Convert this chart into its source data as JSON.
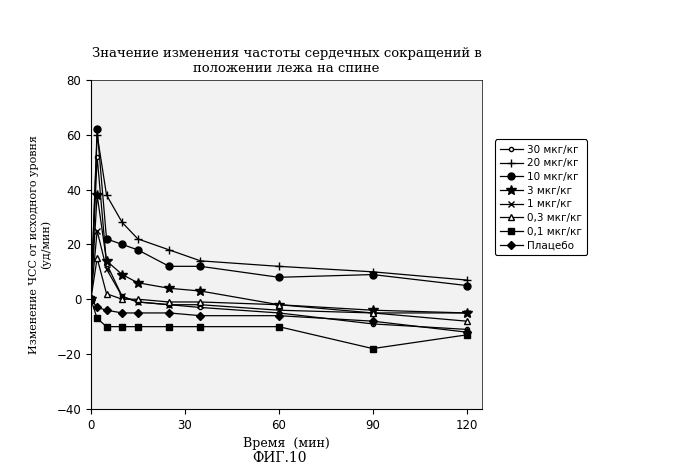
{
  "title": "Значение изменения частоты сердечных сокращений в\nположении лежа на спине",
  "xlabel": "Время  (мин)",
  "ylabel": "Изменение ЧСС от исходного уровня\n(уд/мин)",
  "xlim": [
    0,
    125
  ],
  "ylim": [
    -40,
    80
  ],
  "yticks": [
    -40,
    -20,
    0,
    20,
    40,
    60,
    80
  ],
  "xticks": [
    0,
    30,
    60,
    90,
    120
  ],
  "caption": "ФИГ.10",
  "bg_color": "#f0f0f0",
  "series": [
    {
      "label": "30 мкг/кг",
      "marker": "o",
      "markersize": 3,
      "filled": false,
      "x": [
        0,
        2,
        5,
        10,
        15,
        25,
        35,
        60,
        90,
        120
      ],
      "y": [
        0,
        52,
        13,
        1,
        -1,
        -2,
        -3,
        -5,
        -9,
        -11
      ]
    },
    {
      "label": "20 мкг/кг",
      "marker": "+",
      "markersize": 6,
      "filled": false,
      "x": [
        0,
        2,
        5,
        10,
        15,
        25,
        35,
        60,
        90,
        120
      ],
      "y": [
        0,
        60,
        38,
        28,
        22,
        18,
        14,
        12,
        10,
        7
      ]
    },
    {
      "label": "10 мкг/кг",
      "marker": "o",
      "markersize": 5,
      "filled": true,
      "x": [
        0,
        2,
        5,
        10,
        15,
        25,
        35,
        60,
        90,
        120
      ],
      "y": [
        0,
        62,
        22,
        20,
        18,
        12,
        12,
        8,
        9,
        5
      ]
    },
    {
      "label": "3 мкг/кг",
      "marker": "*",
      "markersize": 7,
      "filled": true,
      "x": [
        0,
        2,
        5,
        10,
        15,
        25,
        35,
        60,
        90,
        120
      ],
      "y": [
        0,
        38,
        14,
        9,
        6,
        4,
        3,
        -2,
        -4,
        -5
      ]
    },
    {
      "label": "1 мкг/кг",
      "marker": "x",
      "markersize": 5,
      "filled": false,
      "x": [
        0,
        2,
        5,
        10,
        15,
        25,
        35,
        60,
        90,
        120
      ],
      "y": [
        0,
        25,
        11,
        1,
        -1,
        -2,
        -2,
        -4,
        -5,
        -5
      ]
    },
    {
      "label": "0,3 мкг/кг",
      "marker": "^",
      "markersize": 5,
      "filled": false,
      "x": [
        0,
        2,
        5,
        10,
        15,
        25,
        35,
        60,
        90,
        120
      ],
      "y": [
        0,
        15,
        2,
        0,
        0,
        -1,
        -1,
        -2,
        -5,
        -8
      ]
    },
    {
      "label": "0,1 мкг/кг",
      "marker": "s",
      "markersize": 4,
      "filled": true,
      "x": [
        0,
        2,
        5,
        10,
        15,
        25,
        35,
        60,
        90,
        120
      ],
      "y": [
        0,
        -7,
        -10,
        -10,
        -10,
        -10,
        -10,
        -10,
        -18,
        -13
      ]
    },
    {
      "label": "Плацебо",
      "marker": "D",
      "markersize": 4,
      "filled": true,
      "x": [
        0,
        2,
        5,
        10,
        15,
        25,
        35,
        60,
        90,
        120
      ],
      "y": [
        0,
        -3,
        -4,
        -5,
        -5,
        -5,
        -6,
        -6,
        -8,
        -12
      ]
    }
  ]
}
